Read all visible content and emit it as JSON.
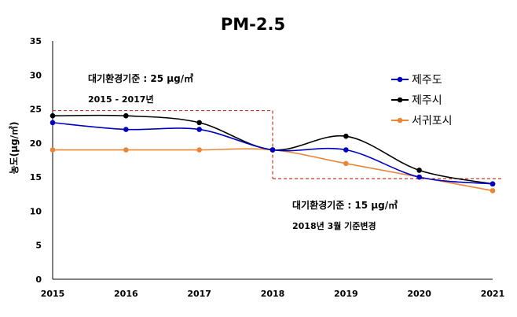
{
  "chart_data": {
    "type": "line",
    "title": "PM-2.5",
    "ylabel": "농도(μg/㎥)",
    "xlabel": "",
    "x": [
      2015,
      2016,
      2017,
      2018,
      2019,
      2020,
      2021
    ],
    "ylim": [
      0,
      35
    ],
    "yticks": [
      0,
      5,
      10,
      15,
      20,
      25,
      30,
      35
    ],
    "grid": false,
    "smooth": true,
    "legend": "top-right",
    "series": [
      {
        "name": "제주도",
        "color": "#0000c0",
        "values": [
          23,
          22,
          22,
          19,
          19,
          15,
          14
        ]
      },
      {
        "name": "제주시",
        "color": "#000000",
        "values": [
          24,
          24,
          23,
          19,
          21,
          16,
          14
        ]
      },
      {
        "name": "서귀포시",
        "color": "#e8873a",
        "values": [
          19,
          19,
          19,
          19,
          17,
          15,
          13
        ]
      }
    ],
    "thresholds": [
      {
        "value": 25,
        "from": 2015,
        "to": 2018,
        "color": "#c0392b"
      },
      {
        "value": 15,
        "from": 2018,
        "to": 2021,
        "color": "#c0392b"
      }
    ],
    "annotations": [
      {
        "lines": [
          "대기환경기준 : 25 μg/㎥",
          "2015 - 2017년"
        ]
      },
      {
        "lines": [
          "대기환경기준 : 15 μg/㎥",
          "2018년 3월 기준변경"
        ]
      }
    ]
  }
}
